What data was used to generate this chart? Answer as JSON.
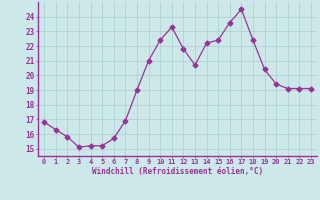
{
  "x": [
    0,
    1,
    2,
    3,
    4,
    5,
    6,
    7,
    8,
    9,
    10,
    11,
    12,
    13,
    14,
    15,
    16,
    17,
    18,
    19,
    20,
    21,
    22,
    23
  ],
  "y": [
    16.8,
    16.3,
    15.8,
    15.1,
    15.2,
    15.2,
    15.7,
    16.9,
    19.0,
    21.0,
    22.4,
    23.3,
    21.8,
    20.7,
    22.2,
    22.4,
    23.6,
    24.5,
    22.4,
    20.4,
    19.4,
    19.1,
    19.1,
    19.1
  ],
  "line_color": "#993399",
  "marker": "D",
  "marker_size": 2.5,
  "bg_color": "#cce8e8",
  "grid_color": "#aacece",
  "axis_color": "#993399",
  "tick_color": "#993399",
  "xlabel": "Windchill (Refroidissement éolien,°C)",
  "xlim": [
    -0.5,
    23.5
  ],
  "ylim": [
    14.5,
    25.0
  ],
  "yticks": [
    15,
    16,
    17,
    18,
    19,
    20,
    21,
    22,
    23,
    24
  ],
  "xticks": [
    0,
    1,
    2,
    3,
    4,
    5,
    6,
    7,
    8,
    9,
    10,
    11,
    12,
    13,
    14,
    15,
    16,
    17,
    18,
    19,
    20,
    21,
    22,
    23
  ]
}
